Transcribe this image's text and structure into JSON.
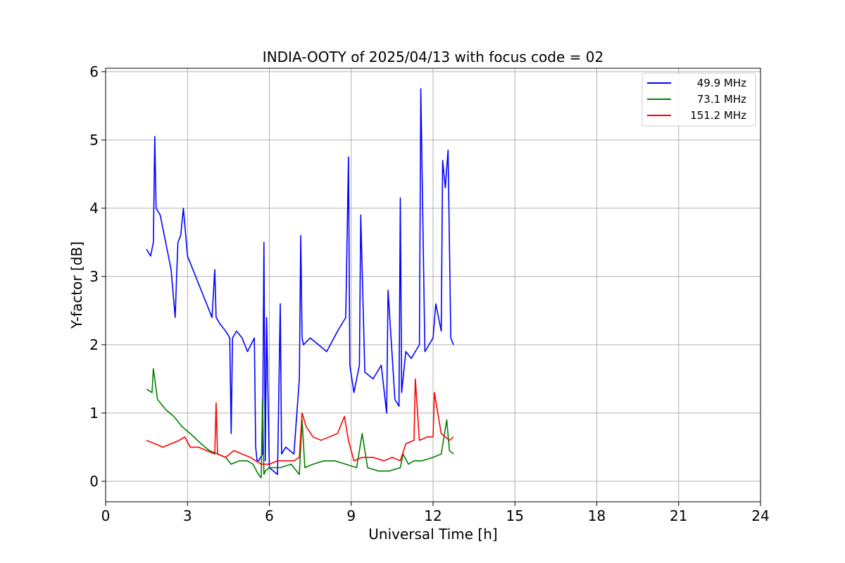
{
  "chart_data": {
    "type": "line",
    "title": "INDIA-OOTY of 2025/04/13 with focus code = 02",
    "xlabel": "Universal Time [h]",
    "ylabel": "Y-factor [dB]",
    "xlim": [
      0,
      24
    ],
    "ylim": [
      -0.3,
      6.05
    ],
    "xticks": [
      0,
      3,
      6,
      9,
      12,
      15,
      18,
      21,
      24
    ],
    "yticks": [
      0,
      1,
      2,
      3,
      4,
      5,
      6
    ],
    "grid": true,
    "legend_position": "top-right",
    "series": [
      {
        "name": "49.9 MHz",
        "color": "#0000ff",
        "x": [
          1.5,
          1.65,
          1.75,
          1.8,
          1.85,
          2.0,
          2.2,
          2.4,
          2.55,
          2.6,
          2.65,
          2.75,
          2.85,
          3.0,
          3.3,
          3.6,
          3.9,
          4.0,
          4.05,
          4.2,
          4.4,
          4.55,
          4.6,
          4.65,
          4.8,
          5.0,
          5.2,
          5.45,
          5.5,
          5.55,
          5.6,
          5.75,
          5.8,
          5.85,
          5.9,
          6.0,
          6.3,
          6.4,
          6.45,
          6.6,
          6.9,
          7.1,
          7.15,
          7.2,
          7.25,
          7.5,
          7.8,
          8.1,
          8.5,
          8.8,
          8.9,
          8.95,
          9.1,
          9.3,
          9.35,
          9.5,
          9.8,
          10.1,
          10.3,
          10.35,
          10.6,
          10.75,
          10.8,
          10.85,
          11.0,
          11.2,
          11.5,
          11.55,
          11.7,
          12.0,
          12.1,
          12.3,
          12.35,
          12.45,
          12.55,
          12.65,
          12.75
        ],
        "y": [
          3.4,
          3.3,
          3.5,
          5.05,
          4.0,
          3.9,
          3.5,
          3.1,
          2.4,
          3.0,
          3.5,
          3.6,
          4.0,
          3.3,
          3.0,
          2.7,
          2.4,
          3.1,
          2.4,
          2.3,
          2.2,
          2.1,
          0.7,
          2.1,
          2.2,
          2.1,
          1.9,
          2.1,
          0.5,
          0.3,
          0.3,
          0.4,
          3.5,
          0.3,
          2.4,
          0.2,
          0.1,
          2.6,
          0.4,
          0.5,
          0.4,
          1.5,
          3.6,
          2.1,
          2.0,
          2.1,
          2.0,
          1.9,
          2.2,
          2.4,
          4.75,
          1.7,
          1.3,
          1.7,
          3.9,
          1.6,
          1.5,
          1.7,
          1.0,
          2.8,
          1.2,
          1.1,
          4.15,
          1.3,
          1.9,
          1.8,
          2.0,
          5.75,
          1.9,
          2.1,
          2.6,
          2.2,
          4.7,
          4.3,
          4.85,
          2.1,
          2.0
        ]
      },
      {
        "name": "73.1 MHz",
        "color": "#008000",
        "x": [
          1.5,
          1.7,
          1.75,
          1.9,
          2.2,
          2.5,
          2.8,
          3.1,
          3.5,
          3.8,
          4.1,
          4.4,
          4.6,
          4.9,
          5.2,
          5.4,
          5.6,
          5.7,
          5.75,
          5.8,
          5.85,
          6.0,
          6.4,
          6.8,
          7.1,
          7.2,
          7.3,
          7.6,
          8.0,
          8.4,
          8.8,
          9.2,
          9.4,
          9.6,
          10.0,
          10.4,
          10.8,
          10.9,
          11.1,
          11.3,
          11.6,
          12.0,
          12.3,
          12.5,
          12.6,
          12.75
        ],
        "y": [
          1.35,
          1.3,
          1.65,
          1.2,
          1.05,
          0.95,
          0.8,
          0.7,
          0.55,
          0.45,
          0.4,
          0.35,
          0.25,
          0.3,
          0.3,
          0.25,
          0.1,
          0.05,
          1.2,
          0.1,
          0.15,
          0.2,
          0.2,
          0.25,
          0.1,
          0.9,
          0.2,
          0.25,
          0.3,
          0.3,
          0.25,
          0.2,
          0.7,
          0.2,
          0.15,
          0.15,
          0.2,
          0.4,
          0.25,
          0.3,
          0.3,
          0.35,
          0.4,
          0.9,
          0.45,
          0.4
        ]
      },
      {
        "name": "151.2 MHz",
        "color": "#ff0000",
        "x": [
          1.5,
          1.8,
          2.1,
          2.4,
          2.7,
          2.9,
          3.1,
          3.4,
          3.7,
          4.0,
          4.05,
          4.1,
          4.4,
          4.7,
          5.0,
          5.3,
          5.5,
          5.7,
          6.0,
          6.3,
          6.6,
          6.9,
          7.1,
          7.2,
          7.35,
          7.6,
          7.9,
          8.2,
          8.5,
          8.75,
          8.9,
          9.1,
          9.4,
          9.8,
          10.2,
          10.5,
          10.8,
          11.0,
          11.3,
          11.35,
          11.5,
          11.8,
          12.0,
          12.05,
          12.3,
          12.6,
          12.75
        ],
        "y": [
          0.6,
          0.55,
          0.5,
          0.55,
          0.6,
          0.65,
          0.5,
          0.5,
          0.45,
          0.4,
          1.15,
          0.4,
          0.35,
          0.45,
          0.4,
          0.35,
          0.3,
          0.25,
          0.25,
          0.3,
          0.3,
          0.3,
          0.35,
          1.0,
          0.8,
          0.65,
          0.6,
          0.65,
          0.7,
          0.95,
          0.6,
          0.3,
          0.35,
          0.35,
          0.3,
          0.35,
          0.3,
          0.55,
          0.6,
          1.5,
          0.6,
          0.65,
          0.65,
          1.3,
          0.7,
          0.6,
          0.65
        ]
      }
    ]
  }
}
